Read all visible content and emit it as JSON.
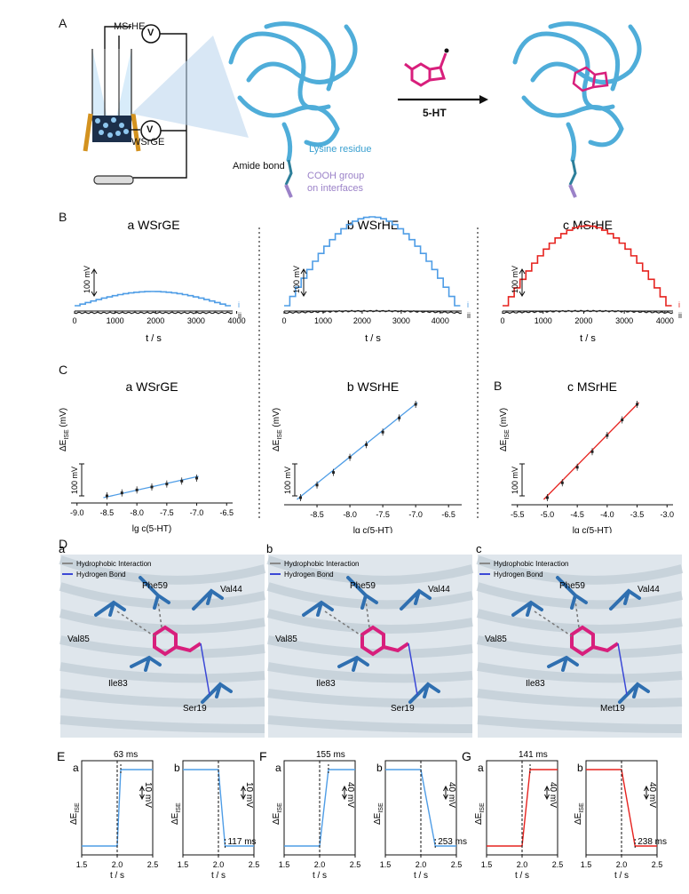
{
  "panel_letters": {
    "A": "A",
    "B": "B",
    "C": "C",
    "C_extra": "B",
    "D": "D",
    "E": "E",
    "F": "F",
    "G": "G"
  },
  "panel_a": {
    "msrhe": "MSrHE",
    "wsrge": "WSrGE",
    "volt": "V",
    "amide": "Amide bond",
    "lysine": "Lysine residue",
    "cooh1": "COOH group",
    "cooh2": "on interfaces",
    "arrow_label": "5-HT"
  },
  "panel_b": {
    "xlabel": "t / s",
    "scale_label": "100 mV",
    "trace_i": "i",
    "trace_ii": "ii",
    "colors": {
      "blue": "#4f9de6",
      "red": "#e6231f",
      "black": "#222222"
    },
    "plots": [
      {
        "title": "a WSrGE",
        "ticks": [
          "0",
          "1000",
          "2000",
          "3000",
          "4000"
        ],
        "color": "blue"
      },
      {
        "title": "b WSrHE",
        "ticks": [
          "0",
          "1000",
          "2000",
          "3000",
          "4000"
        ],
        "color": "blue"
      },
      {
        "title": "c MSrHE",
        "ticks": [
          "0",
          "1000",
          "2000",
          "3000",
          "4000"
        ],
        "color": "red"
      }
    ]
  },
  "panel_c": {
    "xlabel": "lg c(5-HT)",
    "ylabel_main": "ΔE",
    "ylabel_sub": "ISE",
    "ylabel_unit": " (mV)",
    "scale_label": "100 mV",
    "plots": [
      {
        "title": "a WSrGE",
        "ticks": [
          "-9.0",
          "-8.5",
          "-8.0",
          "-7.5",
          "-7.0",
          "-6.5"
        ],
        "color": "blue"
      },
      {
        "title": "b WSrHE",
        "ticks": [
          "-8.5",
          "-8.0",
          "-7.5",
          "-7.0",
          "-6.5"
        ],
        "color": "blue"
      },
      {
        "title": "c MSrHE",
        "ticks": [
          "-5.5",
          "-5.0",
          "-4.5",
          "-4.0",
          "-3.5",
          "-3.0"
        ],
        "color": "red"
      }
    ]
  },
  "panel_d": {
    "legend_hydrophobic": "Hydrophobic Interaction",
    "legend_hbond": "Hydrogen Bond",
    "subs": [
      {
        "letter": "a",
        "residues": [
          "Phe59",
          "Val44",
          "Val85",
          "Ile83",
          "Ser19"
        ]
      },
      {
        "letter": "b",
        "residues": [
          "Phe59",
          "Val44",
          "Val85",
          "Ile83",
          "Ser19"
        ]
      },
      {
        "letter": "c",
        "residues": [
          "Phe59",
          "Val44",
          "Val85",
          "Ile83",
          "Met19"
        ]
      }
    ]
  },
  "panel_efg": {
    "xlabel": "t / s",
    "ticks": [
      "1.5",
      "2.0",
      "2.5"
    ],
    "ylabel_main": "ΔE",
    "ylabel_sub": "ISE",
    "plots": [
      {
        "group": "E",
        "sub": "a",
        "time": "63 ms",
        "scale": "10 mV",
        "dir": "up",
        "color": "blue"
      },
      {
        "group": "",
        "sub": "b",
        "time": "117 ms",
        "scale": "10 mV",
        "dir": "down",
        "color": "blue"
      },
      {
        "group": "F",
        "sub": "a",
        "time": "155 ms",
        "scale": "40 mV",
        "dir": "up",
        "color": "blue"
      },
      {
        "group": "",
        "sub": "b",
        "time": "253 ms",
        "scale": "40 mV",
        "dir": "down",
        "color": "blue"
      },
      {
        "group": "G",
        "sub": "a",
        "time": "141 ms",
        "scale": "40 mV",
        "dir": "up",
        "color": "red"
      },
      {
        "group": "",
        "sub": "b",
        "time": "238 ms",
        "scale": "40 mV",
        "dir": "down",
        "color": "red"
      }
    ]
  },
  "chart_data": [
    {
      "type": "line",
      "title": "a WSrGE",
      "xlabel": "t / s",
      "xlim": [
        0,
        4000
      ],
      "series": [
        {
          "name": "i",
          "shape": "staircase rising then falling, low amplitude"
        },
        {
          "name": "ii",
          "shape": "flat baseline"
        }
      ]
    },
    {
      "type": "line",
      "title": "b WSrHE",
      "xlabel": "t / s",
      "xlim": [
        0,
        4500
      ],
      "series": [
        {
          "name": "i",
          "shape": "staircase rising then falling, high amplitude"
        },
        {
          "name": "ii",
          "shape": "flat baseline"
        }
      ]
    },
    {
      "type": "line",
      "title": "c MSrHE",
      "xlabel": "t / s",
      "xlim": [
        0,
        4200
      ],
      "series": [
        {
          "name": "i",
          "shape": "staircase rising then falling, high amplitude"
        },
        {
          "name": "ii",
          "shape": "flat baseline"
        }
      ]
    },
    {
      "type": "scatter",
      "title": "a WSrGE",
      "xlabel": "lg c(5-HT)",
      "x": [
        -8.5,
        -8.25,
        -8.0,
        -7.75,
        -7.5,
        -7.25,
        -7.0
      ],
      "y": [
        0,
        7,
        14,
        21,
        28,
        35,
        42
      ]
    },
    {
      "type": "scatter",
      "title": "b WSrHE",
      "xlabel": "lg c(5-HT)",
      "x": [
        -8.75,
        -8.5,
        -8.25,
        -8.0,
        -7.75,
        -7.5,
        -7.25,
        -7.0
      ],
      "y": [
        0,
        25,
        50,
        80,
        105,
        130,
        158,
        185
      ]
    },
    {
      "type": "scatter",
      "title": "c MSrHE",
      "xlabel": "lg c(5-HT)",
      "x": [
        -5.0,
        -4.75,
        -4.5,
        -4.25,
        -4.0,
        -3.75,
        -3.5
      ],
      "y": [
        0,
        22,
        45,
        68,
        92,
        115,
        138
      ]
    }
  ]
}
